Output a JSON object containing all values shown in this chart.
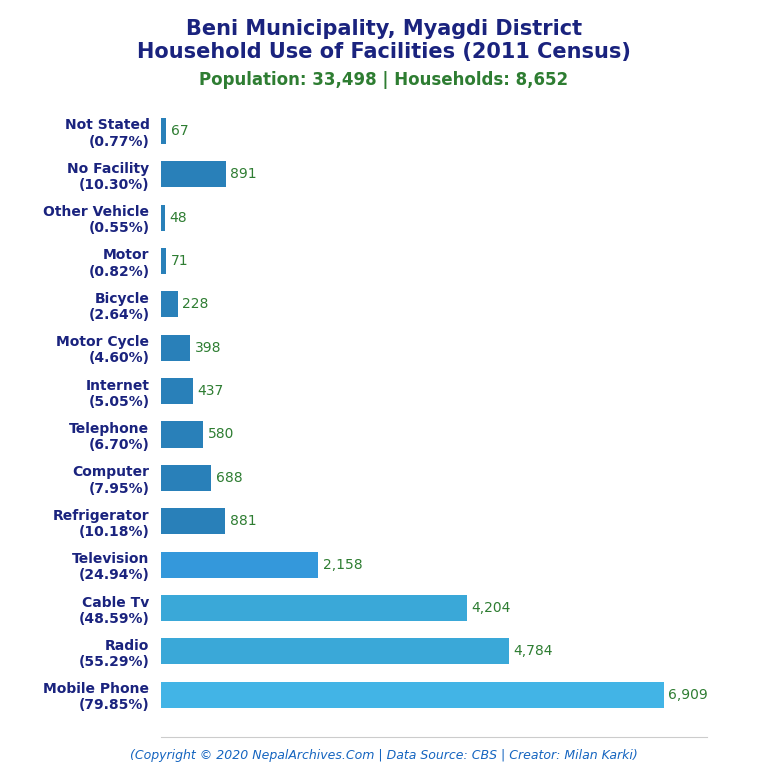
{
  "title_line1": "Beni Municipality, Myagdi District",
  "title_line2": "Household Use of Facilities (2011 Census)",
  "subtitle": "Population: 33,498 | Households: 8,652",
  "footer": "(Copyright © 2020 NepalArchives.Com | Data Source: CBS | Creator: Milan Karki)",
  "categories": [
    "Not Stated\n(0.77%)",
    "No Facility\n(10.30%)",
    "Other Vehicle\n(0.55%)",
    "Motor\n(0.82%)",
    "Bicycle\n(2.64%)",
    "Motor Cycle\n(4.60%)",
    "Internet\n(5.05%)",
    "Telephone\n(6.70%)",
    "Computer\n(7.95%)",
    "Refrigerator\n(10.18%)",
    "Television\n(24.94%)",
    "Cable Tv\n(48.59%)",
    "Radio\n(55.29%)",
    "Mobile Phone\n(79.85%)"
  ],
  "values": [
    67,
    891,
    48,
    71,
    228,
    398,
    437,
    580,
    688,
    881,
    2158,
    4204,
    4784,
    6909
  ],
  "value_labels": [
    "67",
    "891",
    "48",
    "71",
    "228",
    "398",
    "437",
    "580",
    "688",
    "881",
    "2,158",
    "4,204",
    "4,784",
    "6,909"
  ],
  "bar_colors": [
    "#2980b9",
    "#2980b9",
    "#2980b9",
    "#2980b9",
    "#2980b9",
    "#2980b9",
    "#2980b9",
    "#2980b9",
    "#2980b9",
    "#2980b9",
    "#3498db",
    "#3aa8d8",
    "#3aa8d8",
    "#42b4e6"
  ],
  "title_color": "#1a237e",
  "subtitle_color": "#2e7d32",
  "value_label_color": "#2e7d32",
  "footer_color": "#1565c0",
  "ylabel_color": "#1a237e",
  "background_color": "#ffffff",
  "xlim": [
    0,
    7500
  ],
  "title_fontsize": 15,
  "subtitle_fontsize": 12,
  "label_fontsize": 10,
  "value_fontsize": 10,
  "footer_fontsize": 9
}
